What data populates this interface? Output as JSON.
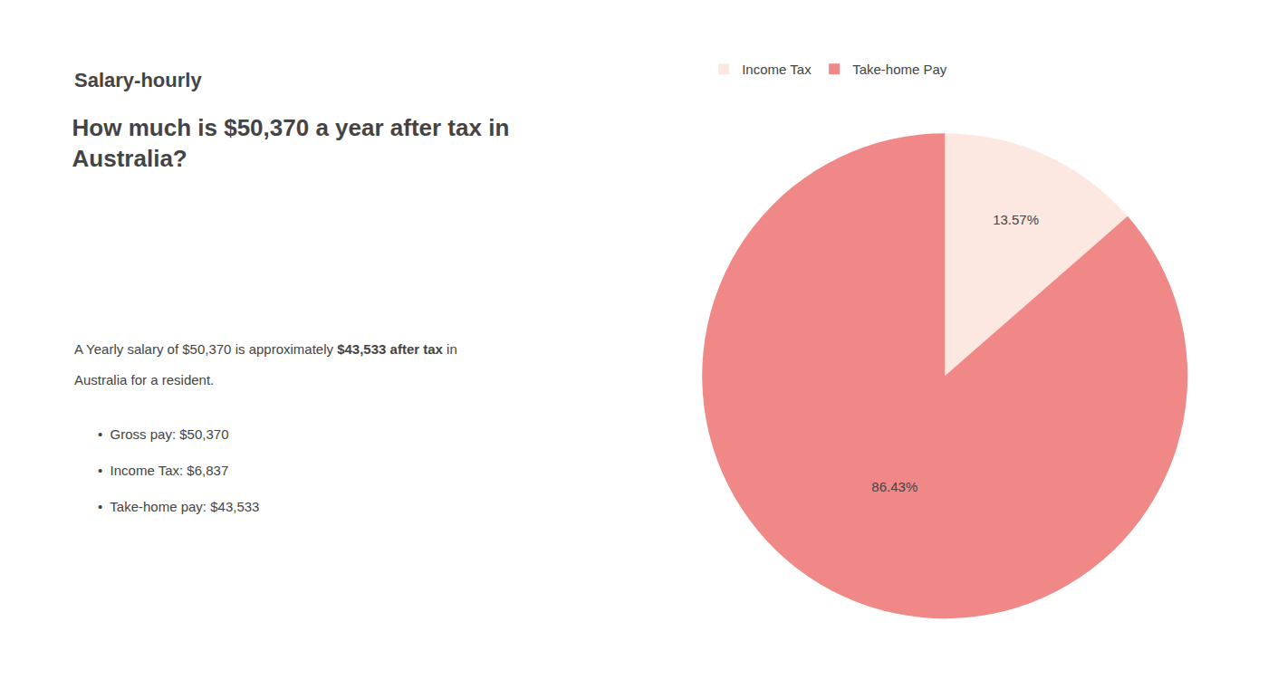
{
  "chart_data": {
    "type": "pie",
    "title": "How much is $50,370 a year after tax in\nAustralia?",
    "categories": [
      "Income Tax",
      "Take-home Pay"
    ],
    "values": [
      13.57,
      86.43
    ],
    "value_labels": [
      "13.57%",
      "86.43%"
    ],
    "colors": [
      "#fce8e0",
      "#f08888"
    ],
    "data_labels": true,
    "legend": "top",
    "annotations": [
      "S",
      "alary-hourly",
      "A Yearly salary of $50,370 is approximately ",
      "$43,533 after tax",
      " in",
      "Australia for a resident.",
      "•",
      "Gross pay: $50,370",
      "•",
      "Income Tax: $6,837",
      "•",
      "Take-home pay: $43,533"
    ]
  }
}
